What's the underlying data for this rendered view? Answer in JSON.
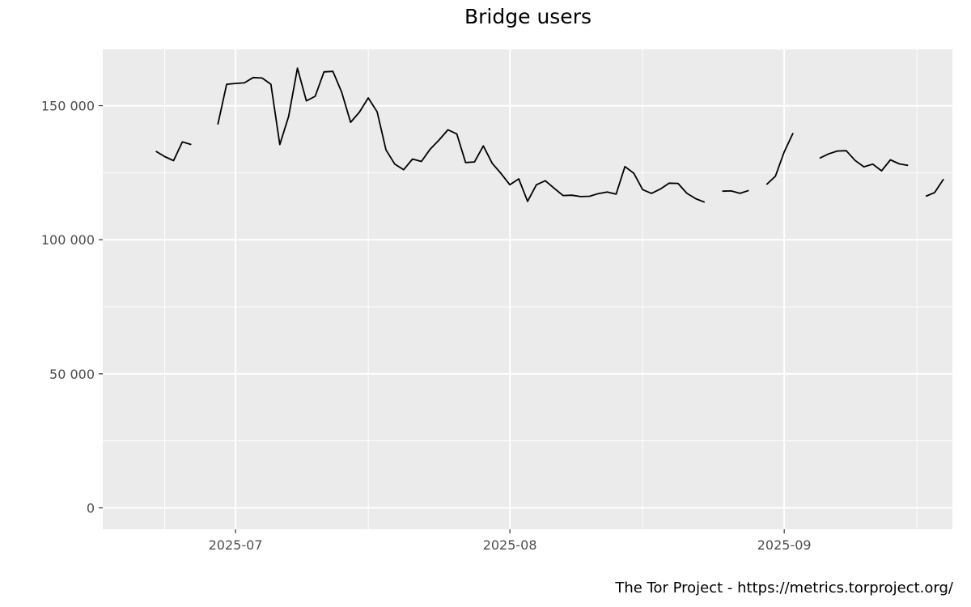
{
  "chart_data": {
    "type": "line",
    "title": "Bridge users",
    "caption": "The Tor Project - https://metrics.torproject.org/",
    "xlabel": "",
    "ylabel": "",
    "x_range": [
      "2025-06-16",
      "2025-09-20"
    ],
    "y_range": [
      -8000,
      171000
    ],
    "grid": true,
    "x_ticks": [
      {
        "date": "2025-07-01",
        "label": "2025-07"
      },
      {
        "date": "2025-08-01",
        "label": "2025-08"
      },
      {
        "date": "2025-09-01",
        "label": "2025-09"
      }
    ],
    "x_minor_gridlines": [
      "2025-06-23",
      "2025-07-16",
      "2025-08-16",
      "2025-09-16"
    ],
    "y_ticks": [
      {
        "value": 0,
        "label": "0"
      },
      {
        "value": 50000,
        "label": "50 000"
      },
      {
        "value": 100000,
        "label": "100 000"
      },
      {
        "value": 150000,
        "label": "150 000"
      }
    ],
    "y_minor_gridlines": [
      25000,
      75000,
      125000
    ],
    "series": [
      {
        "color": "#000000",
        "points": [
          [
            "2025-06-22",
            133000
          ],
          [
            "2025-06-23",
            131000
          ],
          [
            "2025-06-24",
            129500
          ],
          [
            "2025-06-25",
            136500
          ],
          [
            "2025-06-26",
            135500
          ],
          [
            "2025-06-27",
            null
          ],
          [
            "2025-06-28",
            null
          ],
          [
            "2025-06-29",
            143000
          ],
          [
            "2025-06-30",
            158000
          ],
          [
            "2025-07-01",
            158300
          ],
          [
            "2025-07-02",
            158500
          ],
          [
            "2025-07-03",
            160500
          ],
          [
            "2025-07-04",
            160300
          ],
          [
            "2025-07-05",
            158000
          ],
          [
            "2025-07-06",
            135500
          ],
          [
            "2025-07-07",
            146000
          ],
          [
            "2025-07-08",
            164000
          ],
          [
            "2025-07-09",
            151800
          ],
          [
            "2025-07-10",
            153500
          ],
          [
            "2025-07-11",
            162600
          ],
          [
            "2025-07-12",
            162800
          ],
          [
            "2025-07-13",
            155000
          ],
          [
            "2025-07-14",
            143800
          ],
          [
            "2025-07-15",
            147600
          ],
          [
            "2025-07-16",
            152900
          ],
          [
            "2025-07-17",
            147700
          ],
          [
            "2025-07-18",
            133500
          ],
          [
            "2025-07-19",
            128200
          ],
          [
            "2025-07-20",
            126100
          ],
          [
            "2025-07-21",
            130100
          ],
          [
            "2025-07-22",
            129200
          ],
          [
            "2025-07-23",
            133800
          ],
          [
            "2025-07-24",
            137200
          ],
          [
            "2025-07-25",
            141000
          ],
          [
            "2025-07-26",
            139500
          ],
          [
            "2025-07-27",
            128800
          ],
          [
            "2025-07-28",
            129000
          ],
          [
            "2025-07-29",
            135000
          ],
          [
            "2025-07-30",
            128500
          ],
          [
            "2025-07-31",
            124700
          ],
          [
            "2025-08-01",
            120500
          ],
          [
            "2025-08-02",
            122700
          ],
          [
            "2025-08-03",
            114300
          ],
          [
            "2025-08-04",
            120500
          ],
          [
            "2025-08-05",
            122000
          ],
          [
            "2025-08-06",
            119200
          ],
          [
            "2025-08-07",
            116500
          ],
          [
            "2025-08-08",
            116600
          ],
          [
            "2025-08-09",
            116100
          ],
          [
            "2025-08-10",
            116200
          ],
          [
            "2025-08-11",
            117200
          ],
          [
            "2025-08-12",
            117800
          ],
          [
            "2025-08-13",
            117000
          ],
          [
            "2025-08-14",
            127300
          ],
          [
            "2025-08-15",
            124800
          ],
          [
            "2025-08-16",
            118700
          ],
          [
            "2025-08-17",
            117300
          ],
          [
            "2025-08-18",
            118900
          ],
          [
            "2025-08-19",
            121100
          ],
          [
            "2025-08-20",
            121000
          ],
          [
            "2025-08-21",
            117300
          ],
          [
            "2025-08-22",
            115300
          ],
          [
            "2025-08-23",
            114000
          ],
          [
            "2025-08-24",
            null
          ],
          [
            "2025-08-25",
            118100
          ],
          [
            "2025-08-26",
            118200
          ],
          [
            "2025-08-27",
            117300
          ],
          [
            "2025-08-28",
            118400
          ],
          [
            "2025-08-29",
            null
          ],
          [
            "2025-08-30",
            120600
          ],
          [
            "2025-08-31",
            123700
          ],
          [
            "2025-09-01",
            132800
          ],
          [
            "2025-09-02",
            139800
          ],
          [
            "2025-09-03",
            null
          ],
          [
            "2025-09-04",
            null
          ],
          [
            "2025-09-05",
            130400
          ],
          [
            "2025-09-06",
            132000
          ],
          [
            "2025-09-07",
            133100
          ],
          [
            "2025-09-08",
            133200
          ],
          [
            "2025-09-09",
            129600
          ],
          [
            "2025-09-10",
            127200
          ],
          [
            "2025-09-11",
            128200
          ],
          [
            "2025-09-12",
            125700
          ],
          [
            "2025-09-13",
            129800
          ],
          [
            "2025-09-14",
            128300
          ],
          [
            "2025-09-15",
            127700
          ],
          [
            "2025-09-16",
            null
          ],
          [
            "2025-09-17",
            116200
          ],
          [
            "2025-09-18",
            117600
          ],
          [
            "2025-09-19",
            122600
          ]
        ]
      }
    ]
  }
}
